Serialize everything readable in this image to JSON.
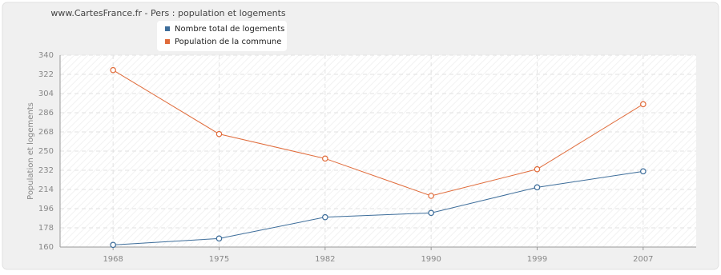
{
  "chart_data": {
    "type": "line",
    "title": "www.CartesFrance.fr - Pers : population et logements",
    "y_label": "Population et logements",
    "categories": [
      "1968",
      "1975",
      "1982",
      "1990",
      "1999",
      "2007"
    ],
    "series": [
      {
        "name": "Nombre total de logements",
        "color": "#3d6d9a",
        "values": [
          162,
          168,
          188,
          192,
          216,
          231
        ]
      },
      {
        "name": "Population de la commune",
        "color": "#e06b3a",
        "values": [
          326,
          266,
          243,
          208,
          233,
          294
        ]
      }
    ],
    "ylim": [
      160,
      340
    ],
    "yticks": [
      160,
      178,
      196,
      214,
      232,
      250,
      268,
      286,
      304,
      322,
      340
    ],
    "grid": true
  }
}
